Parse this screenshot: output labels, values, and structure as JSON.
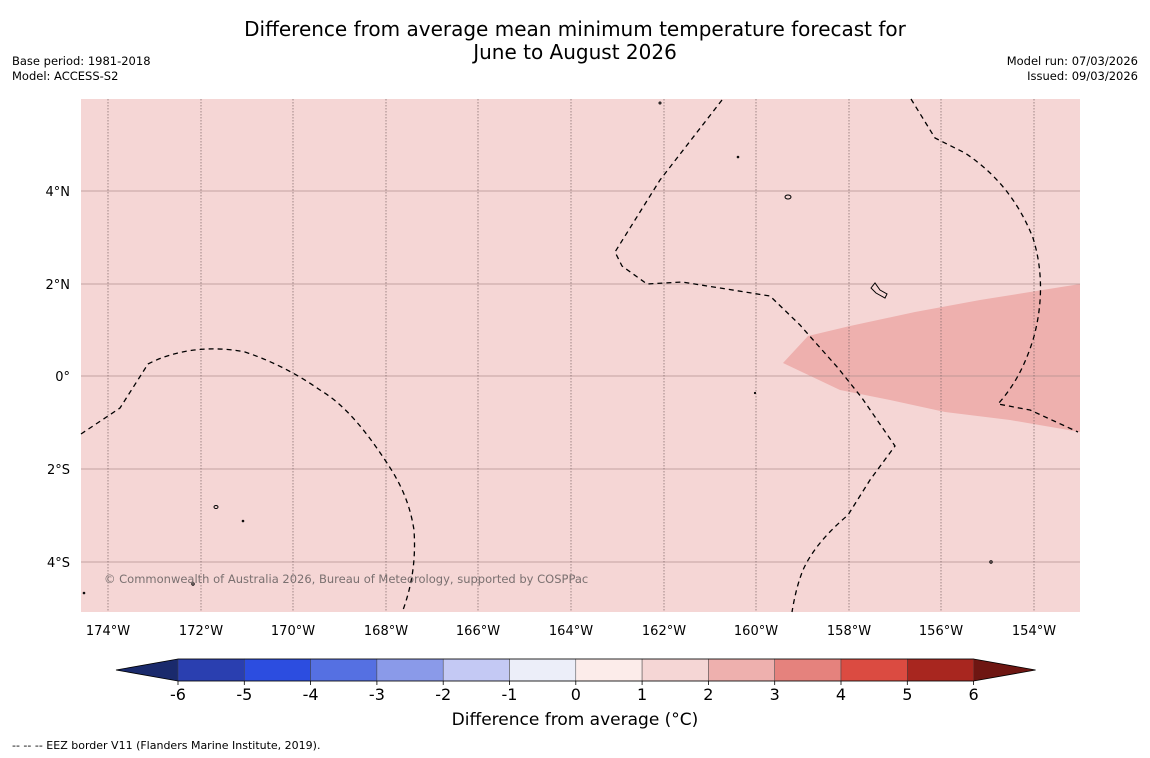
{
  "title_line1": "Difference from average mean minimum temperature forecast for",
  "title_line2": "June to August 2026",
  "base_period": "Base period: 1981-2018",
  "model": "Model: ACCESS-S2",
  "model_run": "Model run: 07/03/2026",
  "issued": "Issued: 09/03/2026",
  "copyright": "© Commonwealth of Australia 2026, Bureau of Meteorology, supported by COSPPac",
  "lon_labels": [
    "174°W",
    "172°W",
    "170°W",
    "168°W",
    "166°W",
    "164°W",
    "162°W",
    "160°W",
    "158°W",
    "156°W",
    "154°W"
  ],
  "lat_labels": [
    "4°N",
    "2°N",
    "0°",
    "2°S",
    "4°S"
  ],
  "colorbar": {
    "label": "Difference from average (°C)",
    "ticks": [
      "-6",
      "-5",
      "-4",
      "-3",
      "-2",
      "-1",
      "0",
      "1",
      "2",
      "3",
      "4",
      "5",
      "6"
    ],
    "colors": [
      "#1a2a6c",
      "#2a3fb0",
      "#2c4de0",
      "#5570e2",
      "#8a9ae9",
      "#c4c9f4",
      "#eceef9",
      "#fcecea",
      "#f5d6d5",
      "#eeb0ae",
      "#e5827d",
      "#db4b41",
      "#a8261f",
      "#6e1612"
    ]
  },
  "region_colors": {
    "base": "#f5d6d5",
    "warm": "#eeb0ae"
  },
  "footer": "-- -- -- EEZ border V11 (Flanders Marine Institute, 2019)."
}
